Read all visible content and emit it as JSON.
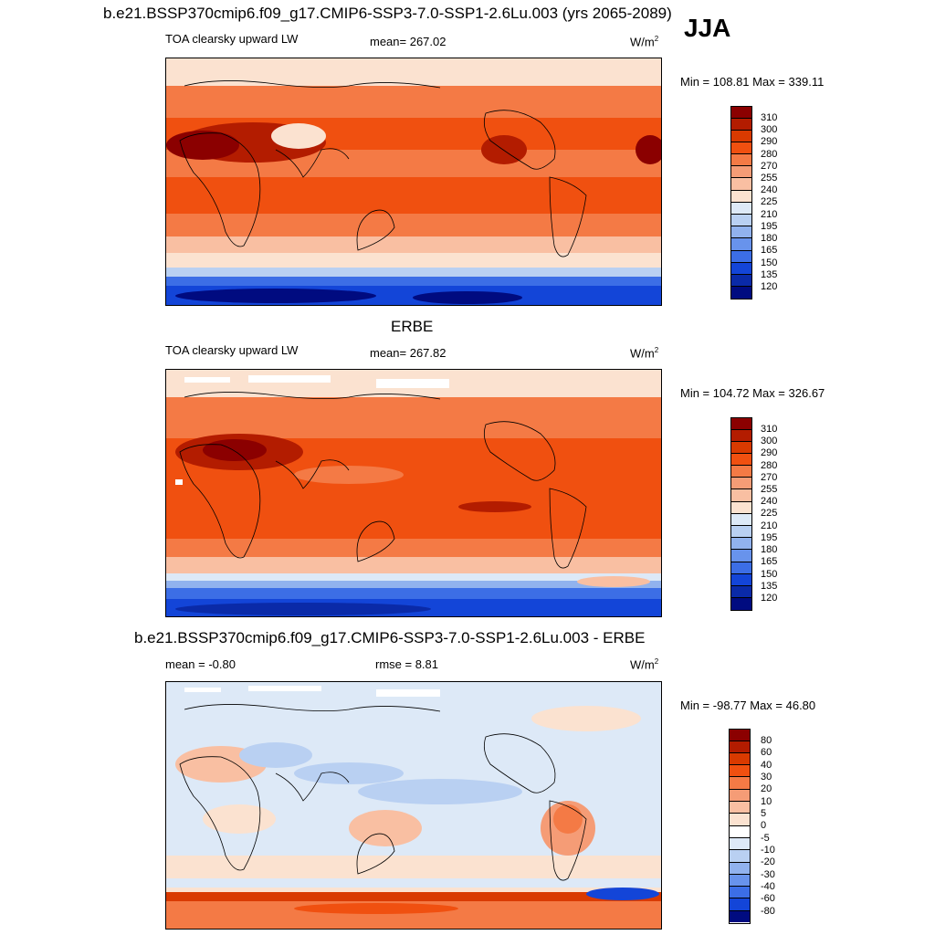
{
  "header": {
    "title": "b.e21.BSSP370cmip6.f09_g17.CMIP6-SSP3-7.0-SSP1-2.6Lu.003 (yrs 2065-2089)",
    "season": "JJA"
  },
  "panels": [
    {
      "title": "",
      "left_label": "TOA clearsky upward LW",
      "center_label": "mean= 267.02",
      "units": "W/m",
      "units_exp": "2",
      "minmax": "Min = 108.81 Max = 339.11",
      "colorbar": {
        "ticks": [
          "310",
          "300",
          "290",
          "280",
          "270",
          "255",
          "240",
          "225",
          "210",
          "195",
          "180",
          "165",
          "150",
          "135",
          "120"
        ],
        "colors": [
          "#8b0000",
          "#b31c00",
          "#d93a00",
          "#f05010",
          "#f47a45",
          "#f59c76",
          "#f9bfa2",
          "#fbe2d0",
          "#dde9f7",
          "#b9d0f2",
          "#91b2ee",
          "#6893ec",
          "#3c6ee6",
          "#1345d8",
          "#0a2aa8",
          "#000b80"
        ]
      }
    },
    {
      "title": "ERBE",
      "left_label": "TOA clearsky upward LW",
      "center_label": "mean= 267.82",
      "units": "W/m",
      "units_exp": "2",
      "minmax": "Min = 104.72 Max = 326.67",
      "colorbar": {
        "ticks": [
          "310",
          "300",
          "290",
          "280",
          "270",
          "255",
          "240",
          "225",
          "210",
          "195",
          "180",
          "165",
          "150",
          "135",
          "120"
        ],
        "colors": [
          "#8b0000",
          "#b31c00",
          "#d93a00",
          "#f05010",
          "#f47a45",
          "#f59c76",
          "#f9bfa2",
          "#fbe2d0",
          "#dde9f7",
          "#b9d0f2",
          "#91b2ee",
          "#6893ec",
          "#3c6ee6",
          "#1345d8",
          "#0a2aa8",
          "#000b80"
        ]
      }
    },
    {
      "title": "b.e21.BSSP370cmip6.f09_g17.CMIP6-SSP3-7.0-SSP1-2.6Lu.003 - ERBE",
      "left_label": "mean =  -0.80",
      "center_label": "rmse =   8.81",
      "units": "W/m",
      "units_exp": "2",
      "minmax": "Min = -98.77 Max =  46.80",
      "colorbar": {
        "ticks": [
          "80",
          "60",
          "40",
          "30",
          "20",
          "10",
          "5",
          "0",
          "-5",
          "-10",
          "-20",
          "-30",
          "-40",
          "-60",
          "-80"
        ],
        "colors": [
          "#8b0000",
          "#b31c00",
          "#d93a00",
          "#f05010",
          "#f47a45",
          "#f59c76",
          "#f9bfa2",
          "#fbe2d0",
          "#ffffff",
          "#dde9f7",
          "#b9d0f2",
          "#91b2ee",
          "#6893ec",
          "#3c6ee6",
          "#1345d8",
          "#000b80"
        ]
      }
    }
  ]
}
